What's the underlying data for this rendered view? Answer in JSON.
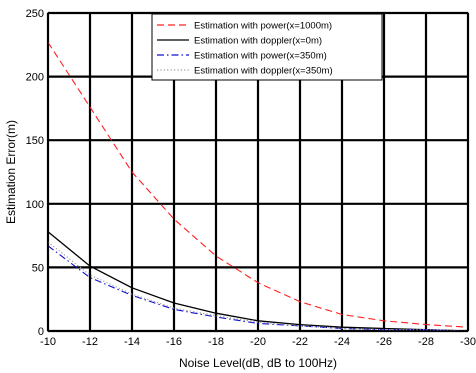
{
  "chart_data": {
    "type": "line",
    "xlabel": "Noise Level(dB, dB to 100Hz)",
    "ylabel": "Estimation Error(m)",
    "xlim": [
      -10,
      -30
    ],
    "ylim": [
      0,
      250
    ],
    "x_ticks": [
      "-10",
      "-12",
      "-14",
      "-16",
      "-18",
      "-20",
      "-22",
      "-24",
      "-26",
      "-28",
      "-30"
    ],
    "y_ticks": [
      "0",
      "50",
      "100",
      "150",
      "200",
      "250"
    ],
    "grid": true,
    "legend_position": "top-right",
    "x": [
      -10,
      -12,
      -14,
      -16,
      -18,
      -20,
      -22,
      -24,
      -26,
      -28,
      -30
    ],
    "series": [
      {
        "name": "Estimation with power(x=1000m)",
        "color": "#ff2020",
        "style": "dashed",
        "values": [
          227,
          176,
          125,
          88,
          59,
          38,
          23,
          13,
          8,
          5,
          3
        ]
      },
      {
        "name": "Estimation with doppler(x=0m)",
        "color": "#000000",
        "style": "solid",
        "values": [
          78,
          51,
          34,
          22,
          14,
          8,
          5,
          3,
          2,
          1,
          0
        ]
      },
      {
        "name": "Estimation with power(x=350m)",
        "color": "#1010cc",
        "style": "dashdot",
        "values": [
          67,
          42,
          28,
          17,
          11,
          6,
          4,
          2,
          1,
          1,
          0
        ]
      },
      {
        "name": "Estimation with doppler(x=350m)",
        "color": "#9a9a9a",
        "style": "dotted",
        "values": [
          70,
          44,
          29,
          18,
          12,
          7,
          4,
          2,
          1,
          1,
          0
        ]
      }
    ]
  }
}
